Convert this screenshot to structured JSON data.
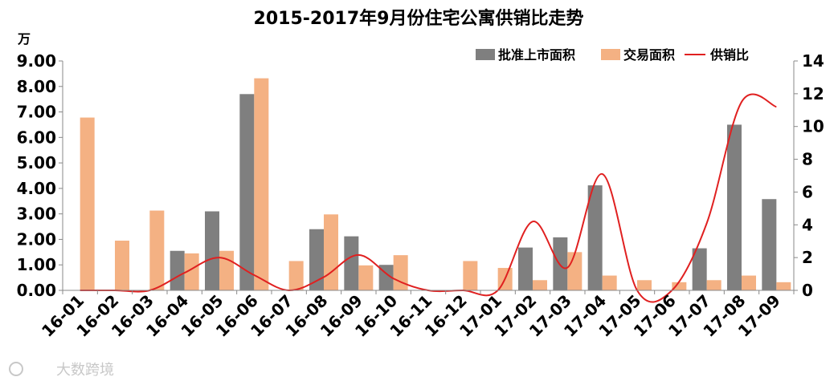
{
  "chart_data": {
    "type": "bar",
    "title": "2015-2017年9月份住宅公寓供销比走势",
    "y_unit": "万",
    "categories": [
      "16-01",
      "16-02",
      "16-03",
      "16-04",
      "16-05",
      "16-06",
      "16-07",
      "16-08",
      "16-09",
      "16-10",
      "16-11",
      "16-12",
      "17-01",
      "17-02",
      "17-03",
      "17-04",
      "17-05",
      "17-06",
      "17-07",
      "17-08",
      "17-09"
    ],
    "series": [
      {
        "name": "批准上市面积",
        "type": "bar",
        "axis": "left",
        "color": "#7f7f7f",
        "values": [
          0,
          0,
          0,
          1.55,
          3.1,
          7.7,
          0,
          2.4,
          2.12,
          1.0,
          0,
          0,
          0,
          1.68,
          2.08,
          4.12,
          0,
          0,
          1.65,
          6.5,
          3.58
        ]
      },
      {
        "name": "交易面积",
        "type": "bar",
        "axis": "left",
        "color": "#f4b183",
        "values": [
          6.78,
          1.95,
          3.13,
          1.45,
          1.55,
          8.32,
          1.15,
          2.98,
          0.98,
          1.38,
          0,
          1.15,
          0.88,
          0.4,
          1.5,
          0.58,
          0.4,
          0.32,
          0.4,
          0.58,
          0.32
        ]
      },
      {
        "name": "供销比",
        "type": "line",
        "axis": "right",
        "color": "#e02020",
        "values": [
          0,
          0,
          0,
          1.07,
          2.0,
          0.93,
          0,
          0.81,
          2.16,
          0.72,
          0,
          0,
          0,
          4.2,
          1.39,
          7.1,
          0,
          0,
          4.1,
          11.5,
          11.2
        ]
      }
    ],
    "y_left": {
      "min": 0,
      "max": 9,
      "step": 1,
      "ticks": [
        "0.00",
        "1.00",
        "2.00",
        "3.00",
        "4.00",
        "5.00",
        "6.00",
        "7.00",
        "8.00",
        "9.00"
      ]
    },
    "y_right": {
      "min": 0,
      "max": 14,
      "step": 2,
      "ticks": [
        "0",
        "2",
        "4",
        "6",
        "8",
        "10",
        "12",
        "14"
      ]
    },
    "legend_position": "top-right",
    "grid": false
  },
  "watermark": "大数跨境"
}
